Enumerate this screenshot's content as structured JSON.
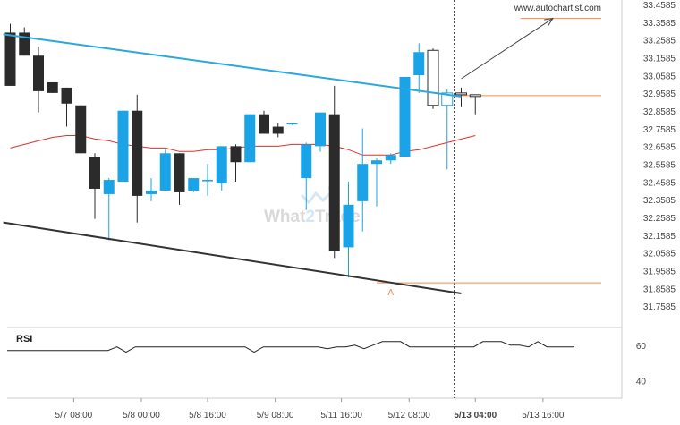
{
  "header": {
    "site": "www.autochartist.com"
  },
  "watermark": {
    "left": "What",
    "digit": "2",
    "right": "Trade"
  },
  "colors": {
    "up": "#1aa3e6",
    "down": "#2b2b2b",
    "ma": "#e0312b",
    "resistance": "#29a8e0",
    "support": "#333333",
    "level": "#f08a4b",
    "axis": "#666666",
    "grid": "#e9e9e9"
  },
  "chart_data": [
    {
      "type": "candlestick",
      "ylim": [
        31.6585,
        33.4585
      ],
      "y_ticks": [
        "33.4585",
        "33.3585",
        "33.2585",
        "33.1585",
        "33.0585",
        "32.9585",
        "32.8585",
        "32.7585",
        "32.6585",
        "32.5585",
        "32.4585",
        "32.3585",
        "32.2585",
        "32.1585",
        "32.0585",
        "31.9585",
        "31.8585",
        "31.7585"
      ],
      "x_ticks": [
        {
          "label": "5/7 08:00",
          "index": 4.5
        },
        {
          "label": "5/8 00:00",
          "index": 9.3
        },
        {
          "label": "5/8 16:00",
          "index": 14.0
        },
        {
          "label": "5/9 08:00",
          "index": 18.8
        },
        {
          "label": "5/11 16:00",
          "index": 23.5
        },
        {
          "label": "5/12 08:00",
          "index": 28.3
        },
        {
          "label": "5/13 04:00",
          "index": 33.0,
          "bold": true
        },
        {
          "label": "5/13 16:00",
          "index": 37.8
        }
      ],
      "candles": [
        {
          "o": 33.3,
          "h": 33.35,
          "l": 33.0,
          "c": 33.0
        },
        {
          "o": 33.3,
          "h": 33.33,
          "l": 33.17,
          "c": 33.17
        },
        {
          "o": 33.17,
          "h": 33.22,
          "l": 32.85,
          "c": 32.97
        },
        {
          "o": 33.02,
          "h": 33.02,
          "l": 32.96,
          "c": 32.96
        },
        {
          "o": 32.99,
          "h": 32.99,
          "l": 32.77,
          "c": 32.9
        },
        {
          "o": 32.89,
          "h": 32.89,
          "l": 32.62,
          "c": 32.62
        },
        {
          "o": 32.6,
          "h": 32.62,
          "l": 32.25,
          "c": 32.42
        },
        {
          "o": 32.39,
          "h": 32.48,
          "l": 32.13,
          "c": 32.47
        },
        {
          "o": 32.46,
          "h": 32.86,
          "l": 32.46,
          "c": 32.86
        },
        {
          "o": 32.86,
          "h": 32.95,
          "l": 32.23,
          "c": 32.38
        },
        {
          "o": 32.39,
          "h": 32.48,
          "l": 32.35,
          "c": 32.41
        },
        {
          "o": 32.41,
          "h": 32.64,
          "l": 32.41,
          "c": 32.62
        },
        {
          "o": 32.62,
          "h": 32.62,
          "l": 32.33,
          "c": 32.4
        },
        {
          "o": 32.41,
          "h": 32.48,
          "l": 32.4,
          "c": 32.48
        },
        {
          "o": 32.47,
          "h": 32.56,
          "l": 32.38,
          "c": 32.47
        },
        {
          "o": 32.45,
          "h": 32.66,
          "l": 32.41,
          "c": 32.66
        },
        {
          "o": 32.66,
          "h": 32.67,
          "l": 32.46,
          "c": 32.57
        },
        {
          "o": 32.57,
          "h": 32.84,
          "l": 32.57,
          "c": 32.84
        },
        {
          "o": 32.84,
          "h": 32.86,
          "l": 32.73,
          "c": 32.73
        },
        {
          "o": 32.77,
          "h": 32.79,
          "l": 32.71,
          "c": 32.73
        },
        {
          "o": 32.79,
          "h": 32.79,
          "l": 32.78,
          "c": 32.79
        },
        {
          "o": 32.48,
          "h": 32.68,
          "l": 32.3,
          "c": 32.67
        },
        {
          "o": 32.66,
          "h": 32.85,
          "l": 32.63,
          "c": 32.85
        },
        {
          "o": 32.84,
          "h": 33.0,
          "l": 32.03,
          "c": 32.07
        },
        {
          "o": 32.09,
          "h": 32.46,
          "l": 31.92,
          "c": 32.33
        },
        {
          "o": 32.35,
          "h": 32.76,
          "l": 32.18,
          "c": 32.56
        },
        {
          "o": 32.56,
          "h": 32.59,
          "l": 32.32,
          "c": 32.58
        },
        {
          "o": 32.58,
          "h": 32.62,
          "l": 32.56,
          "c": 32.61
        },
        {
          "o": 32.6,
          "h": 33.05,
          "l": 32.6,
          "c": 33.05
        },
        {
          "o": 33.06,
          "h": 33.24,
          "l": 32.96,
          "c": 33.19
        },
        {
          "o": 33.2,
          "h": 33.21,
          "l": 32.87,
          "c": 32.89
        },
        {
          "o": 32.89,
          "h": 32.98,
          "l": 32.53,
          "c": 32.96
        },
        {
          "o": 32.96,
          "h": 32.99,
          "l": 32.88,
          "c": 32.95
        },
        {
          "o": 32.95,
          "h": 32.95,
          "l": 32.84,
          "c": 32.94
        }
      ],
      "moving_average": [
        32.65,
        32.67,
        32.69,
        32.71,
        32.72,
        32.72,
        32.7,
        32.69,
        32.67,
        32.66,
        32.65,
        32.65,
        32.63,
        32.63,
        32.64,
        32.64,
        32.65,
        32.66,
        32.66,
        32.66,
        32.67,
        32.67,
        32.67,
        32.66,
        32.64,
        32.61,
        32.61,
        32.61,
        32.63,
        32.64,
        32.66,
        32.68,
        32.7,
        32.72
      ],
      "resistance_line": {
        "from": [
          -0.5,
          33.29
        ],
        "to": [
          32.0,
          32.94
        ]
      },
      "support_line": {
        "from": [
          -0.5,
          32.23
        ],
        "to": [
          32.0,
          31.83
        ]
      },
      "forecast_arrow": {
        "from": [
          32.0,
          33.04
        ],
        "to": [
          38.5,
          33.38
        ]
      },
      "target_level": {
        "value": 33.38,
        "from_index": 36.2
      },
      "current_level": {
        "value": 32.945
      },
      "breakout_level": {
        "value": 31.89,
        "from_index": 26.0
      },
      "marker": {
        "label": "A",
        "index": 27.0
      },
      "divider_index": 31.5
    },
    {
      "type": "line",
      "title": "RSI",
      "ylim": [
        30,
        70
      ],
      "y_ticks": [
        "60",
        "40"
      ],
      "values": [
        57,
        57,
        57,
        57,
        57,
        57,
        57,
        57,
        57,
        57,
        57,
        57,
        59,
        56,
        59,
        59,
        59,
        59,
        59,
        59,
        59,
        59,
        59,
        59,
        59,
        59,
        59,
        56,
        59,
        59,
        59,
        59,
        59,
        59,
        59,
        58,
        59,
        59,
        60,
        58,
        60,
        62,
        62,
        62,
        59,
        59,
        59,
        59,
        59,
        59,
        59,
        59,
        62,
        62,
        62,
        60,
        60,
        59,
        62,
        59,
        59,
        59,
        59
      ]
    }
  ]
}
